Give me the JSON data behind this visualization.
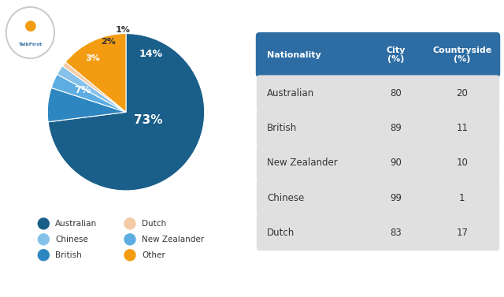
{
  "pie_values": [
    73,
    7,
    3,
    2,
    1,
    14
  ],
  "pie_labels": [
    "Australian",
    "British",
    "New Zealander",
    "Chinese",
    "Dutch",
    "Other"
  ],
  "pie_colors": [
    "#1a5f8a",
    "#2e86c1",
    "#5dade2",
    "#85c1e9",
    "#f5cba7",
    "#f39c12"
  ],
  "pie_pct_labels": [
    "73%",
    "7%",
    "3%",
    "2%",
    "1%",
    "14%"
  ],
  "legend_labels": [
    "Australian",
    "Chinese",
    "British",
    "Dutch",
    "New Zealander",
    "Other"
  ],
  "legend_colors": [
    "#1a5f8a",
    "#85c1e9",
    "#2e86c1",
    "#f5cba7",
    "#5dade2",
    "#f39c12"
  ],
  "table_header": [
    "Nationality",
    "City\n(%)",
    "Countryside\n(%)"
  ],
  "table_rows": [
    [
      "Australian",
      "80",
      "20"
    ],
    [
      "British",
      "89",
      "11"
    ],
    [
      "New Zealander",
      "90",
      "10"
    ],
    [
      "Chinese",
      "99",
      "1"
    ],
    [
      "Dutch",
      "83",
      "17"
    ]
  ],
  "header_bg": "#2e6da4",
  "header_fg": "#ffffff",
  "row_bg": "#e0e0e0",
  "row_fg": "#333333",
  "bg_color": "#ffffff"
}
